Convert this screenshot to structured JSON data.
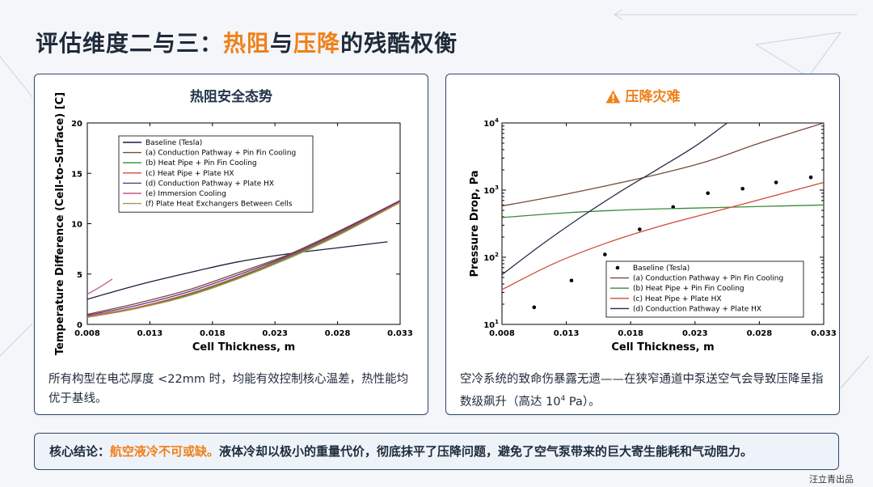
{
  "header": {
    "title_prefix": "评估维度二与三：",
    "title_hl1": "热阻",
    "title_mid": "与",
    "title_hl2": "压降",
    "title_suffix": "的残酷权衡"
  },
  "left_panel": {
    "title": "热阻安全态势",
    "caption": "所有构型在电芯厚度 <22mm 时，均能有效控制核心温差，热性能均优于基线。"
  },
  "right_panel": {
    "title": "压降灾难",
    "icon": "warning-icon",
    "caption_main": "空冷系统的致命伤暴露无遗——在狭窄通道中泵送空气会导致压降呈指数级飙升（高达 10",
    "caption_sup": "4",
    "caption_tail": " Pa）。"
  },
  "conclusion": {
    "label": "核心结论：",
    "highlight": "航空液冷不可或缺。",
    "text": "液体冷却以极小的重量代价，彻底抹平了压降问题，避免了空气泵带来的巨大寄生能耗和气动阻力。"
  },
  "watermark": "汪立青出品",
  "colors": {
    "accent": "#f0801a",
    "panel_border": "#30486b"
  },
  "chart_data": [
    {
      "type": "line",
      "title": "",
      "xlabel": "Cell Thickness, m",
      "ylabel": "Temperature Difference (Cell-to-Surface) [C]",
      "xlim": [
        0.008,
        0.033
      ],
      "ylim": [
        0,
        20
      ],
      "xticks": [
        "0.008",
        "0.013",
        "0.018",
        "0.023",
        "0.028",
        "0.033"
      ],
      "yticks": [
        "0",
        "5",
        "10",
        "15",
        "20"
      ],
      "legend_position": "top-left",
      "series": [
        {
          "name": "Baseline (Tesla)",
          "color": "#1c1c3a",
          "x": [
            0.008,
            0.012,
            0.016,
            0.02,
            0.024,
            0.028,
            0.032
          ],
          "y": [
            2.5,
            3.9,
            5.1,
            6.2,
            7.0,
            7.6,
            8.2
          ]
        },
        {
          "name": "(a) Conduction Pathway + Pin Fin Cooling",
          "color": "#7a4a3a",
          "x": [
            0.008,
            0.012,
            0.016,
            0.02,
            0.024,
            0.028,
            0.033
          ],
          "y": [
            1.0,
            2.1,
            3.4,
            5.1,
            6.9,
            9.2,
            12.3
          ]
        },
        {
          "name": "(b) Heat Pipe + Pin Fin Cooling",
          "color": "#3a8a3a",
          "x": [
            0.008,
            0.012,
            0.016,
            0.02,
            0.024,
            0.028,
            0.033
          ],
          "y": [
            0.7,
            1.6,
            2.9,
            4.6,
            6.6,
            8.9,
            12.2
          ]
        },
        {
          "name": "(c) Heat Pipe + Plate HX",
          "color": "#d24a3a",
          "x": [
            0.008,
            0.012,
            0.016,
            0.02,
            0.024,
            0.028,
            0.033
          ],
          "y": [
            0.8,
            1.7,
            3.0,
            4.7,
            6.7,
            9.0,
            12.2
          ]
        },
        {
          "name": "(d) Conduction Pathway + Plate HX",
          "color": "#5a3a8a",
          "x": [
            0.008,
            0.012,
            0.016,
            0.02,
            0.024,
            0.028,
            0.033
          ],
          "y": [
            0.9,
            1.9,
            3.2,
            4.9,
            6.8,
            9.1,
            12.3
          ]
        },
        {
          "name": "(e) Immersion Cooling",
          "color": "#c85a8a",
          "x": [
            0.008,
            0.009,
            0.01
          ],
          "y": [
            3.0,
            3.7,
            4.5
          ]
        },
        {
          "name": "(f) Plate Heat Exchangers Between Cells",
          "color": "#a09a50",
          "x": [
            0.008,
            0.012,
            0.016,
            0.02,
            0.024,
            0.028,
            0.033
          ],
          "y": [
            0.7,
            1.6,
            2.8,
            4.5,
            6.5,
            8.8,
            12.1
          ]
        }
      ]
    },
    {
      "type": "line",
      "title": "",
      "xlabel": "Cell Thickness, m",
      "ylabel": "Pressure Drop, Pa",
      "xlim": [
        0.008,
        0.033
      ],
      "ylim": [
        10,
        10000
      ],
      "yscale": "log",
      "xticks": [
        "0.008",
        "0.013",
        "0.018",
        "0.023",
        "0.028",
        "0.033"
      ],
      "legend_position": "bottom-right",
      "series": [
        {
          "name": "Baseline (Tesla)",
          "color": "#000000",
          "mode": "markers",
          "x": [
            0.0105,
            0.0134,
            0.016,
            0.0187,
            0.0213,
            0.024,
            0.0267,
            0.0293,
            0.032
          ],
          "y": [
            18,
            45,
            110,
            260,
            560,
            900,
            1050,
            1300,
            1550
          ]
        },
        {
          "name": "(a) Conduction Pathway + Pin Fin Cooling",
          "color": "#7a4a3a",
          "x": [
            0.008,
            0.012,
            0.016,
            0.02,
            0.024,
            0.028,
            0.033
          ],
          "y": [
            580,
            800,
            1150,
            1700,
            2700,
            5000,
            10000
          ]
        },
        {
          "name": "(b) Heat Pipe + Pin Fin Cooling",
          "color": "#3a8a3a",
          "x": [
            0.008,
            0.013,
            0.018,
            0.023,
            0.028,
            0.033
          ],
          "y": [
            390,
            460,
            510,
            540,
            570,
            600
          ]
        },
        {
          "name": "(c) Heat Pipe + Plate HX",
          "color": "#d24a3a",
          "x": [
            0.008,
            0.012,
            0.016,
            0.02,
            0.024,
            0.028,
            0.033
          ],
          "y": [
            33,
            80,
            160,
            280,
            450,
            720,
            1300
          ]
        },
        {
          "name": "(d) Conduction Pathway + Plate HX",
          "color": "#2a2a4a",
          "x": [
            0.008,
            0.011,
            0.014,
            0.017,
            0.02,
            0.023,
            0.0255
          ],
          "y": [
            55,
            150,
            380,
            900,
            2000,
            4500,
            10000
          ]
        }
      ]
    }
  ]
}
